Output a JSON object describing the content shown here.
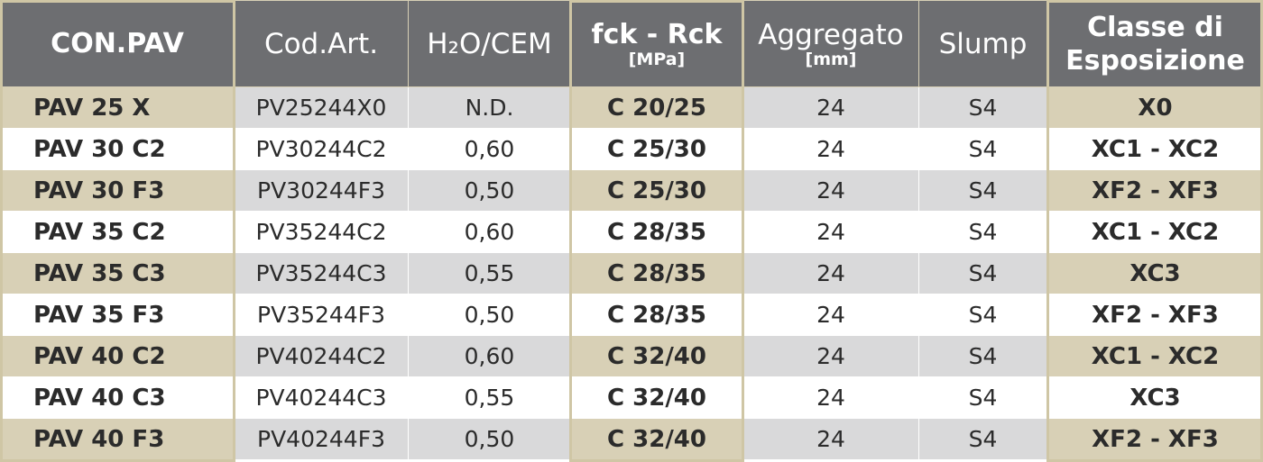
{
  "header": {
    "col1": "CON.PAV",
    "col2": "Cod.Art.",
    "col3": "H₂O/CEM",
    "col4_main": "fck - Rck",
    "col4_sub": "[MPa]",
    "col5_main": "Aggregato",
    "col5_sub": "[mm]",
    "col6": "Slump",
    "col7_line1": "Classe di",
    "col7_line2": "Esposizione"
  },
  "rows": [
    {
      "name": "PAV 25 X",
      "code": "PV25244X0",
      "ratio": "N.D.",
      "strength": "C 20/25",
      "aggregate": "24",
      "slump": "S4",
      "exposure": "X0"
    },
    {
      "name": "PAV 30 C2",
      "code": "PV30244C2",
      "ratio": "0,60",
      "strength": "C 25/30",
      "aggregate": "24",
      "slump": "S4",
      "exposure": "XC1 - XC2"
    },
    {
      "name": "PAV 30 F3",
      "code": "PV30244F3",
      "ratio": "0,50",
      "strength": "C 25/30",
      "aggregate": "24",
      "slump": "S4",
      "exposure": "XF2 - XF3"
    },
    {
      "name": "PAV 35 C2",
      "code": "PV35244C2",
      "ratio": "0,60",
      "strength": "C 28/35",
      "aggregate": "24",
      "slump": "S4",
      "exposure": "XC1 - XC2"
    },
    {
      "name": "PAV 35 C3",
      "code": "PV35244C3",
      "ratio": "0,55",
      "strength": "C 28/35",
      "aggregate": "24",
      "slump": "S4",
      "exposure": "XC3"
    },
    {
      "name": "PAV 35 F3",
      "code": "PV35244F3",
      "ratio": "0,50",
      "strength": "C 28/35",
      "aggregate": "24",
      "slump": "S4",
      "exposure": "XF2 - XF3"
    },
    {
      "name": "PAV 40 C2",
      "code": "PV40244C2",
      "ratio": "0,60",
      "strength": "C 32/40",
      "aggregate": "24",
      "slump": "S4",
      "exposure": "XC1 - XC2"
    },
    {
      "name": "PAV 40 C3",
      "code": "PV40244C3",
      "ratio": "0,55",
      "strength": "C 32/40",
      "aggregate": "24",
      "slump": "S4",
      "exposure": "XC3"
    },
    {
      "name": "PAV 40 F3",
      "code": "PV40244F3",
      "ratio": "0,50",
      "strength": "C 32/40",
      "aggregate": "24",
      "slump": "S4",
      "exposure": "XF2 - XF3"
    }
  ],
  "colors": {
    "header_bg": "#6d6e71",
    "tan": "#d8d0b6",
    "grey": "#d9d9da",
    "white": "#ffffff",
    "frame": "#cfc6a5"
  }
}
